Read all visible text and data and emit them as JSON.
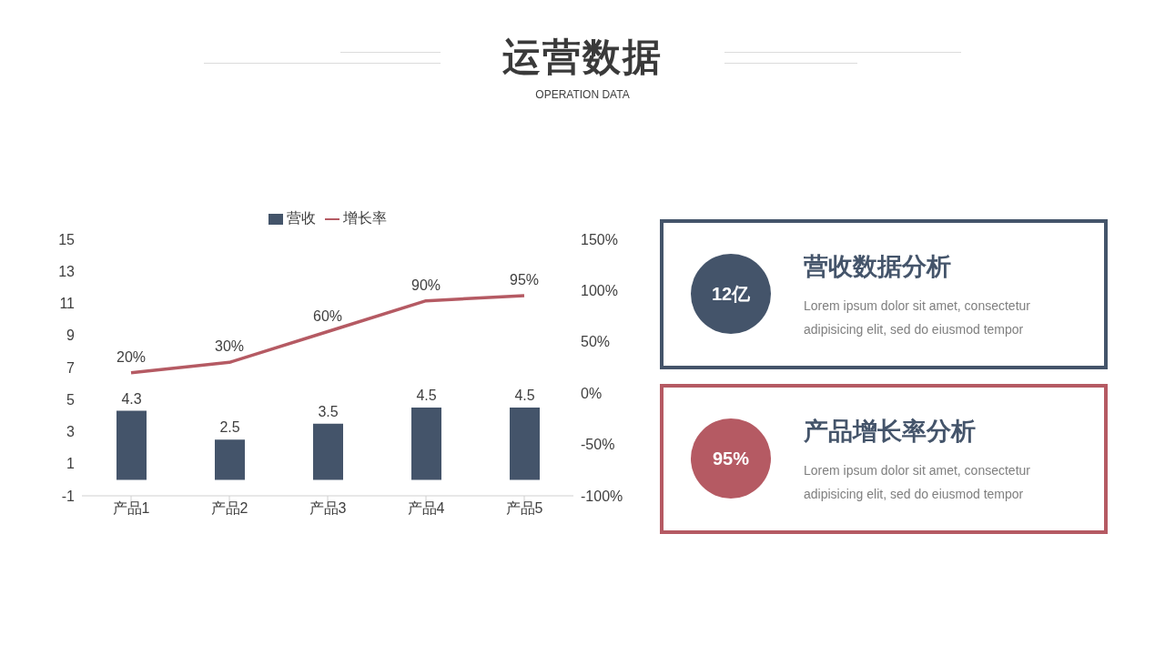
{
  "chart_data": [
    {
      "type": "bar",
      "title": "运营数据",
      "subtitle": "OPERATION DATA",
      "categories": [
        "产品1",
        "产品2",
        "产品3",
        "产品4",
        "产品5"
      ],
      "series": [
        {
          "name": "营收",
          "type": "bar",
          "color": "#44546a",
          "values": [
            4.3,
            2.5,
            3.5,
            4.5,
            4.5
          ]
        },
        {
          "name": "增长率",
          "type": "line",
          "axis": "y2",
          "color": "#b55a63",
          "values": [
            20,
            30,
            60,
            90,
            95
          ],
          "value_labels": [
            "20%",
            "30%",
            "60%",
            "90%",
            "95%"
          ]
        }
      ],
      "ylim": [
        -1,
        15
      ],
      "yticks": [
        -1,
        1,
        3,
        5,
        7,
        9,
        11,
        13,
        15
      ],
      "y2lim": [
        -100,
        150
      ],
      "y2ticks": [
        {
          "value": -100,
          "label": "-100%"
        },
        {
          "value": -50,
          "label": "-50%"
        },
        {
          "value": 0,
          "label": "0%"
        },
        {
          "value": 50,
          "label": "50%"
        },
        {
          "value": 100,
          "label": "100%"
        },
        {
          "value": 150,
          "label": "150%"
        }
      ],
      "data_labels": true,
      "legend": "top",
      "marker": "none",
      "grid": false
    },
    {
      "type": "other",
      "title": "营收数据分析",
      "color": "#44546a",
      "annotations": [
        "12亿",
        "Lorem ipsum dolor sit amet, consectetur adipisicing elit, sed do eiusmod tempor"
      ]
    },
    {
      "type": "other",
      "title": "产品增长率分析",
      "color": "#b55a63",
      "annotations": [
        "95%",
        "Lorem ipsum dolor sit amet, consectetur adipisicing elit, sed do eiusmod tempor"
      ]
    }
  ]
}
